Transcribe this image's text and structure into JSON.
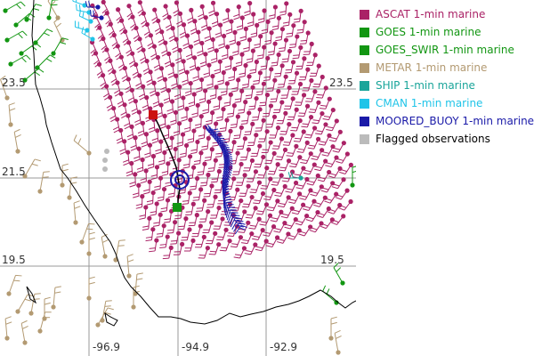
{
  "map": {
    "lat_labels_left": [
      "23.5",
      "21.5",
      "19.5"
    ],
    "lat_labels_right": [
      "23.5",
      "19.5"
    ],
    "lon_labels": [
      "-96.9",
      "-94.9",
      "-92.9"
    ]
  },
  "legend": [
    {
      "label": "ASCAT 1-min marine",
      "color": "#aa2266"
    },
    {
      "label": "GOES 1-min marine",
      "color": "#129612"
    },
    {
      "label": "GOES_SWIR 1-min marine",
      "color": "#129612"
    },
    {
      "label": "METAR 1-min marine",
      "color": "#b39a72"
    },
    {
      "label": "SHIP 1-min marine",
      "color": "#1aa59a"
    },
    {
      "label": "CMAN 1-min marine",
      "color": "#20c4e8"
    },
    {
      "label": "MOORED_BUOY 1-min marine",
      "color": "#1a1aa8"
    },
    {
      "label": "Flagged observations",
      "color": "#bbbbbb"
    }
  ],
  "colors": {
    "ascat": "#aa2266",
    "goes": "#129612",
    "metar": "#b39a72",
    "ship": "#1aa59a",
    "cman": "#20c4e8",
    "buoy": "#1a1aa8",
    "flagged": "#bbbbbb",
    "coast": "#000000",
    "grid": "#999999"
  }
}
